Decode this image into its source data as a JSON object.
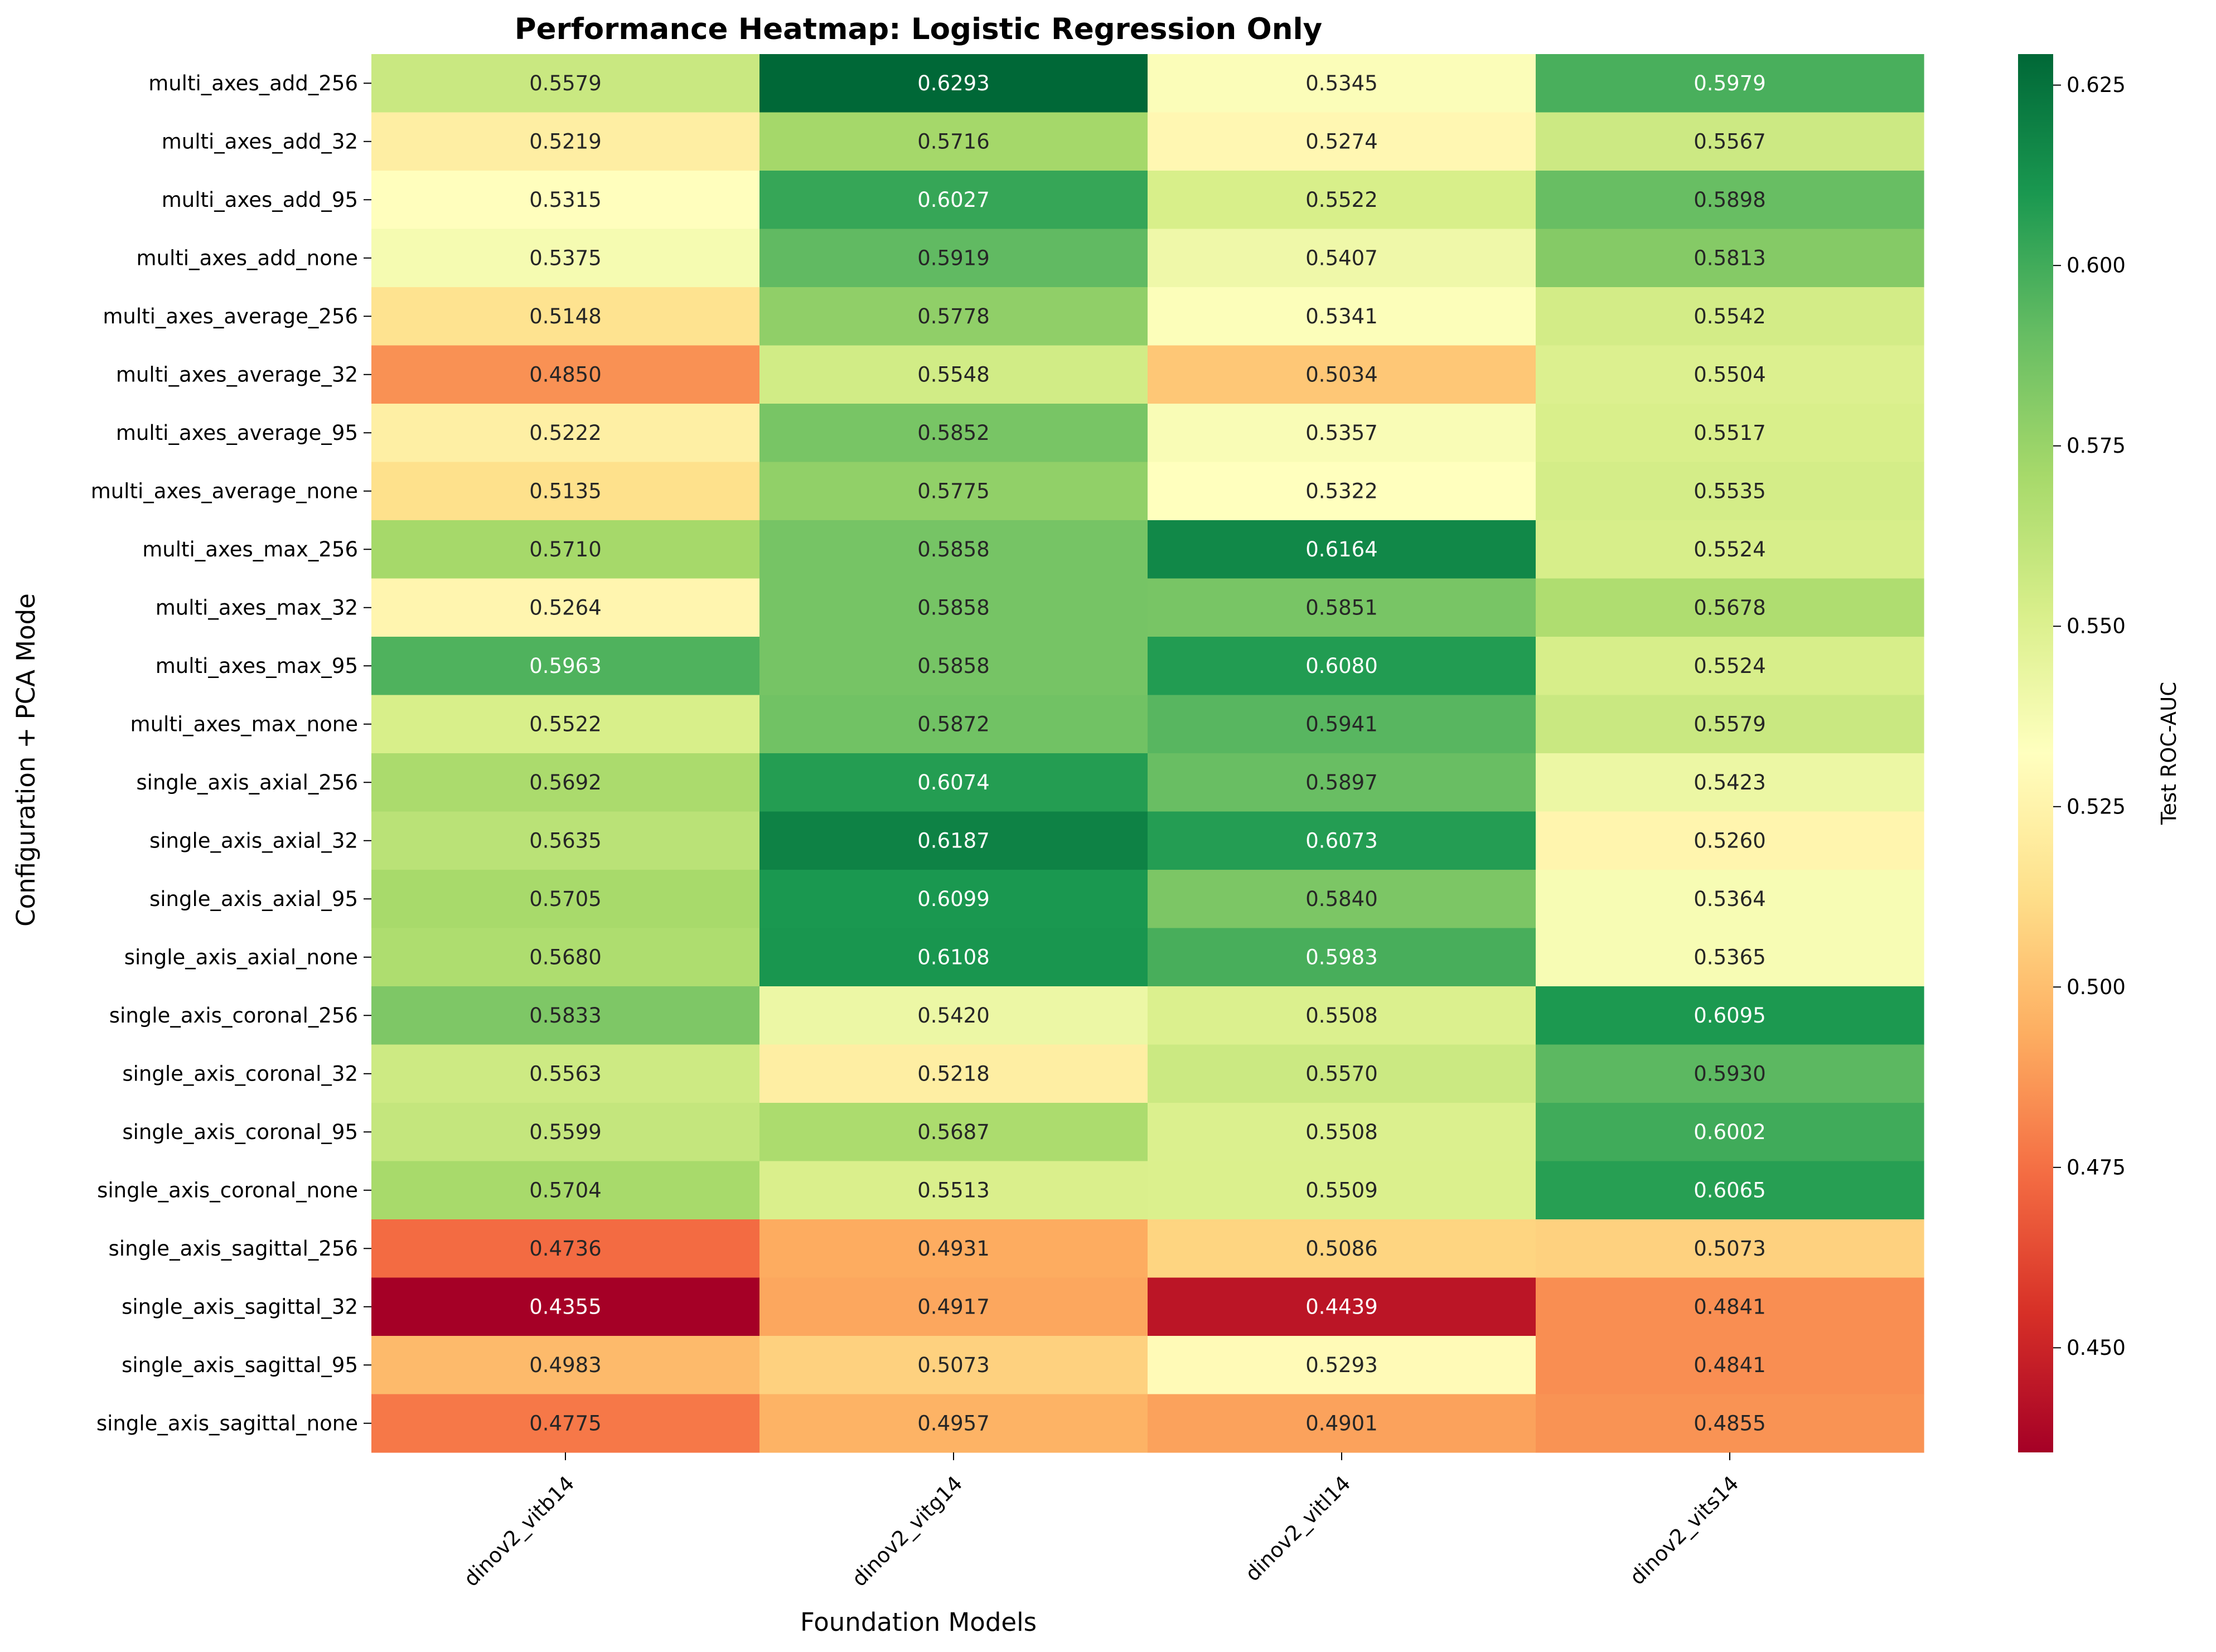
{
  "chart_data": {
    "type": "heatmap",
    "title": "Performance Heatmap: Logistic Regression Only",
    "xlabel": "Foundation Models",
    "ylabel": "Configuration + PCA Mode",
    "colorbar_label": "Test ROC-AUC",
    "colormap": "RdYlGn",
    "vmin": 0.4355,
    "vmax": 0.6293,
    "colorbar_ticks": [
      "0.450",
      "0.475",
      "0.500",
      "0.525",
      "0.550",
      "0.575",
      "0.600",
      "0.625"
    ],
    "columns": [
      "dinov2_vitb14",
      "dinov2_vitg14",
      "dinov2_vitl14",
      "dinov2_vits14"
    ],
    "rows": [
      "multi_axes_add_256",
      "multi_axes_add_32",
      "multi_axes_add_95",
      "multi_axes_add_none",
      "multi_axes_average_256",
      "multi_axes_average_32",
      "multi_axes_average_95",
      "multi_axes_average_none",
      "multi_axes_max_256",
      "multi_axes_max_32",
      "multi_axes_max_95",
      "multi_axes_max_none",
      "single_axis_axial_256",
      "single_axis_axial_32",
      "single_axis_axial_95",
      "single_axis_axial_none",
      "single_axis_coronal_256",
      "single_axis_coronal_32",
      "single_axis_coronal_95",
      "single_axis_coronal_none",
      "single_axis_sagittal_256",
      "single_axis_sagittal_32",
      "single_axis_sagittal_95",
      "single_axis_sagittal_none"
    ],
    "values": [
      [
        0.5579,
        0.6293,
        0.5345,
        0.5979
      ],
      [
        0.5219,
        0.5716,
        0.5274,
        0.5567
      ],
      [
        0.5315,
        0.6027,
        0.5522,
        0.5898
      ],
      [
        0.5375,
        0.5919,
        0.5407,
        0.5813
      ],
      [
        0.5148,
        0.5778,
        0.5341,
        0.5542
      ],
      [
        0.485,
        0.5548,
        0.5034,
        0.5504
      ],
      [
        0.5222,
        0.5852,
        0.5357,
        0.5517
      ],
      [
        0.5135,
        0.5775,
        0.5322,
        0.5535
      ],
      [
        0.571,
        0.5858,
        0.6164,
        0.5524
      ],
      [
        0.5264,
        0.5858,
        0.5851,
        0.5678
      ],
      [
        0.5963,
        0.5858,
        0.608,
        0.5524
      ],
      [
        0.5522,
        0.5872,
        0.5941,
        0.5579
      ],
      [
        0.5692,
        0.6074,
        0.5897,
        0.5423
      ],
      [
        0.5635,
        0.6187,
        0.6073,
        0.526
      ],
      [
        0.5705,
        0.6099,
        0.584,
        0.5364
      ],
      [
        0.568,
        0.6108,
        0.5983,
        0.5365
      ],
      [
        0.5833,
        0.542,
        0.5508,
        0.6095
      ],
      [
        0.5563,
        0.5218,
        0.557,
        0.593
      ],
      [
        0.5599,
        0.5687,
        0.5508,
        0.6002
      ],
      [
        0.5704,
        0.5513,
        0.5509,
        0.6065
      ],
      [
        0.4736,
        0.4931,
        0.5086,
        0.5073
      ],
      [
        0.4355,
        0.4917,
        0.4439,
        0.4841
      ],
      [
        0.4983,
        0.5073,
        0.5293,
        0.4841
      ],
      [
        0.4775,
        0.4957,
        0.4901,
        0.4855
      ]
    ]
  }
}
